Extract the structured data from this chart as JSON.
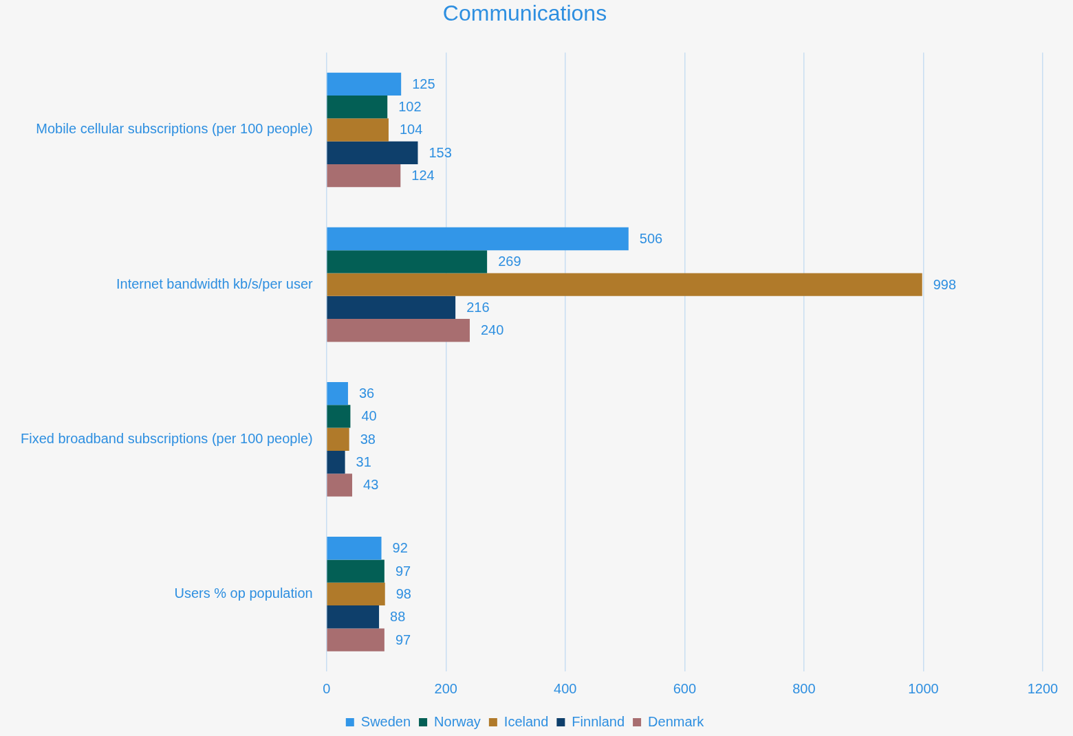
{
  "chart_data": {
    "type": "bar",
    "orientation": "horizontal",
    "title": "Communications",
    "categories": [
      "Mobile cellular subscriptions (per 100 people)",
      "Internet bandwidth kb/s/per user",
      "Fixed broadband subscriptions (per 100 people)",
      "Users % op population"
    ],
    "series": [
      {
        "name": "Sweden",
        "color": "#3296e8",
        "values": [
          125,
          506,
          36,
          92
        ]
      },
      {
        "name": "Norway",
        "color": "#035f55",
        "values": [
          102,
          269,
          40,
          97
        ]
      },
      {
        "name": "Iceland",
        "color": "#b07a2a",
        "values": [
          104,
          998,
          38,
          98
        ]
      },
      {
        "name": "Finnland",
        "color": "#0e3f6b",
        "values": [
          153,
          216,
          31,
          88
        ]
      },
      {
        "name": "Denmark",
        "color": "#a86e70",
        "values": [
          124,
          240,
          43,
          97
        ]
      }
    ],
    "xlim": [
      0,
      1200
    ],
    "xticks": [
      0,
      200,
      400,
      600,
      800,
      1000,
      1200
    ],
    "grid": "x",
    "legend": "bottom",
    "data_labels": true
  }
}
